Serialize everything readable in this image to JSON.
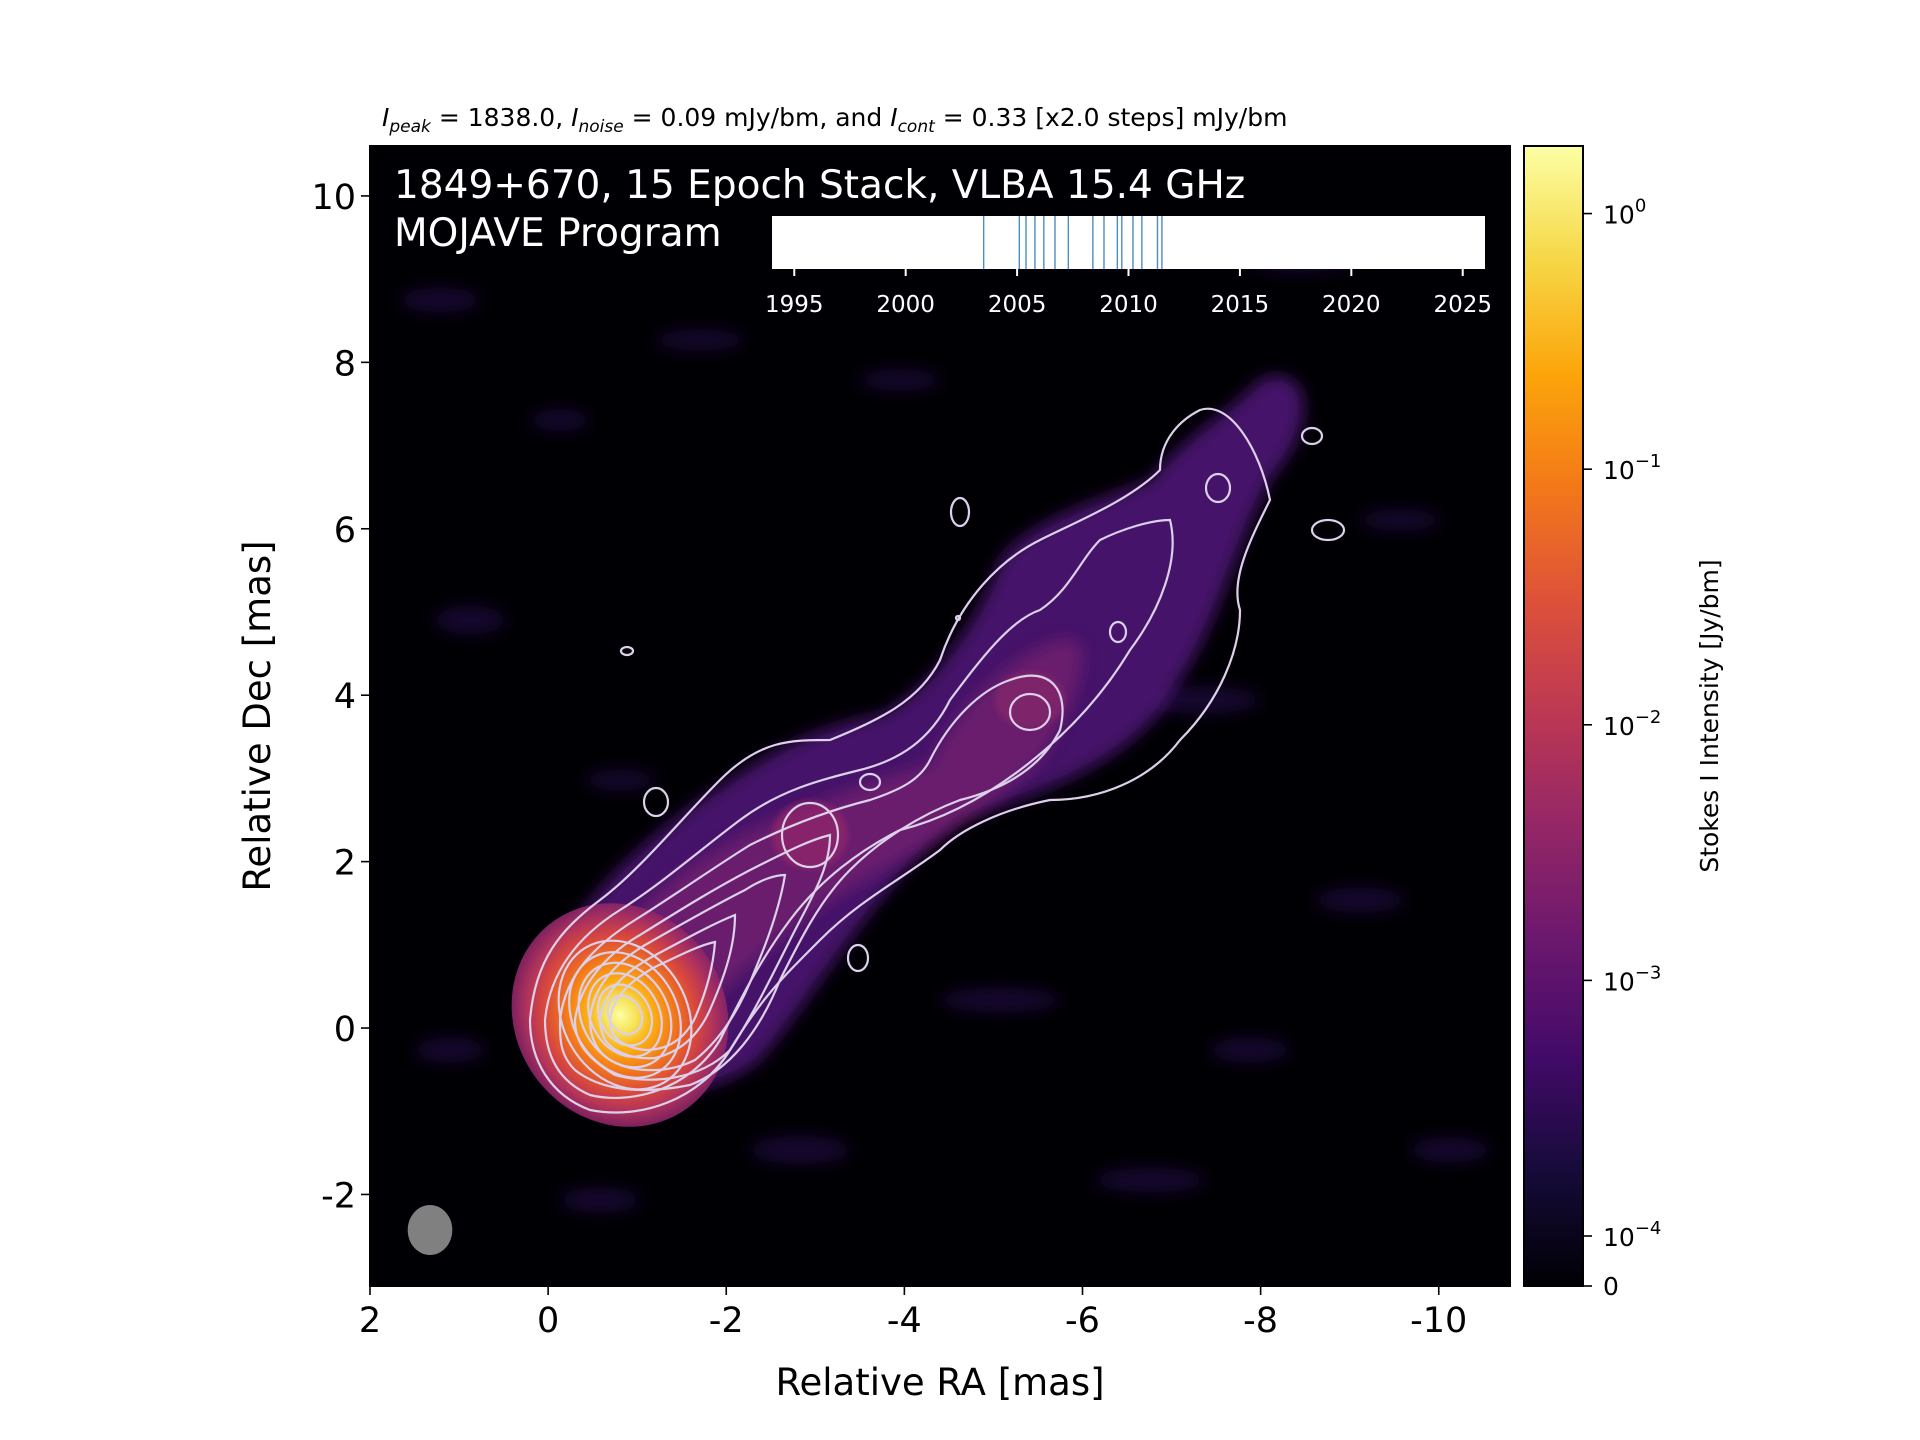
{
  "chart_data": {
    "type": "heatmap",
    "header": {
      "peak_symbol": "I",
      "peak_sub": "peak",
      "peak_text": " = 1838.0, ",
      "noise_symbol": "I",
      "noise_sub": "noise",
      "noise_text": " = 0.09 mJy/bm, and ",
      "cont_symbol": "I",
      "cont_sub": "cont",
      "cont_text": " = 0.33 [x2.0 steps] mJy/bm"
    },
    "title_line1": "1849+670, 15 Epoch Stack, VLBA 15.4 GHz",
    "title_line2": "MOJAVE Program",
    "xlabel": "Relative RA [mas]",
    "ylabel": "Relative Dec [mas]",
    "xlim": [
      2.0,
      -10.8
    ],
    "ylim": [
      -3.1,
      10.6
    ],
    "x_ticks": [
      2,
      0,
      -2,
      -4,
      -6,
      -8,
      -10
    ],
    "y_ticks": [
      -2,
      0,
      2,
      4,
      6,
      8,
      10
    ],
    "colorbar": {
      "label": "Stokes I Intensity [Jy/bm]",
      "scale": "log",
      "ticks": [
        {
          "base": "10",
          "exp": "0",
          "value": 1
        },
        {
          "base": "10",
          "exp": "−1",
          "value": 0.1
        },
        {
          "base": "10",
          "exp": "−2",
          "value": 0.01
        },
        {
          "base": "10",
          "exp": "−3",
          "value": 0.001
        },
        {
          "base": "10",
          "exp": "−4",
          "value": 0.0001
        }
      ],
      "zero_label": "0",
      "vmax": 1.838,
      "colormap": "inferno"
    },
    "epoch_timeline": {
      "xlim": [
        1994,
        2026
      ],
      "ticks": [
        "1995",
        "2000",
        "2005",
        "2010",
        "2015",
        "2020",
        "2025"
      ],
      "epochs": [
        2003.5,
        2005.1,
        2005.4,
        2005.8,
        2006.2,
        2006.7,
        2007.3,
        2008.4,
        2008.9,
        2009.5,
        2009.7,
        2010.2,
        2010.6,
        2011.3,
        2011.5
      ],
      "line_color": "#4c8dbf"
    },
    "beam": {
      "major_mas": 0.6,
      "minor_mas": 0.5,
      "color": "#808080"
    },
    "colors": {
      "contour": "#dcd0ea",
      "background": "#000000"
    }
  }
}
